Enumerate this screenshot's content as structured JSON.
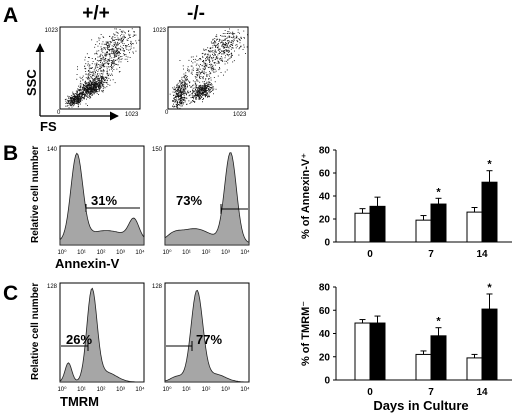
{
  "panel_labels": {
    "a": "A",
    "b": "B",
    "c": "C"
  },
  "genotypes": {
    "wt": "+/+",
    "ko": "-/-"
  },
  "scatter": {
    "ylabel": "SSC",
    "xlabel": "FS",
    "y_max_tick": "1023",
    "x_max_tick": "1023",
    "origin_tick": "0"
  },
  "histograms": {
    "ylabel": "Relative cell number",
    "x_ticks": [
      "10⁰",
      "10¹",
      "10²",
      "10³",
      "10⁴"
    ],
    "annexin": {
      "xlabel": "Annexin-V",
      "wt": {
        "ymax": "140",
        "pct": "31%"
      },
      "ko": {
        "ymax": "150",
        "pct": "73%"
      }
    },
    "tmrm": {
      "xlabel": "TMRM",
      "wt": {
        "ymax": "128",
        "pct": "26%"
      },
      "ko": {
        "ymax": "128",
        "pct": "77%"
      }
    }
  },
  "bar_x_label": "Days in Culture",
  "colors": {
    "wt_fill": "#ffffff",
    "ko_fill": "#000000",
    "hist_fill": "#a6a6a6"
  },
  "chart_data": [
    {
      "type": "bar",
      "panel": "B",
      "ylabel": "% of Annexin-V⁺",
      "categories": [
        "0",
        "7",
        "14"
      ],
      "ylim": [
        0,
        80
      ],
      "yticks": [
        "0",
        "20",
        "40",
        "60",
        "80"
      ],
      "series": [
        {
          "fill": "white",
          "values": [
            25,
            19,
            26
          ],
          "errors": [
            4,
            4,
            4
          ]
        },
        {
          "fill": "black",
          "values": [
            31,
            33,
            52
          ],
          "errors": [
            8,
            5,
            10
          ]
        }
      ],
      "significance": [
        "",
        "*",
        "*"
      ]
    },
    {
      "type": "bar",
      "panel": "C",
      "ylabel": "% of TMRM⁻",
      "categories": [
        "0",
        "7",
        "14"
      ],
      "ylim": [
        0,
        80
      ],
      "yticks": [
        "0",
        "20",
        "40",
        "60",
        "80"
      ],
      "series": [
        {
          "fill": "white",
          "values": [
            49,
            22,
            19
          ],
          "errors": [
            3,
            3,
            3
          ]
        },
        {
          "fill": "black",
          "values": [
            49,
            38,
            61
          ],
          "errors": [
            6,
            7,
            13
          ]
        }
      ],
      "significance": [
        "",
        "*",
        "*"
      ]
    }
  ]
}
